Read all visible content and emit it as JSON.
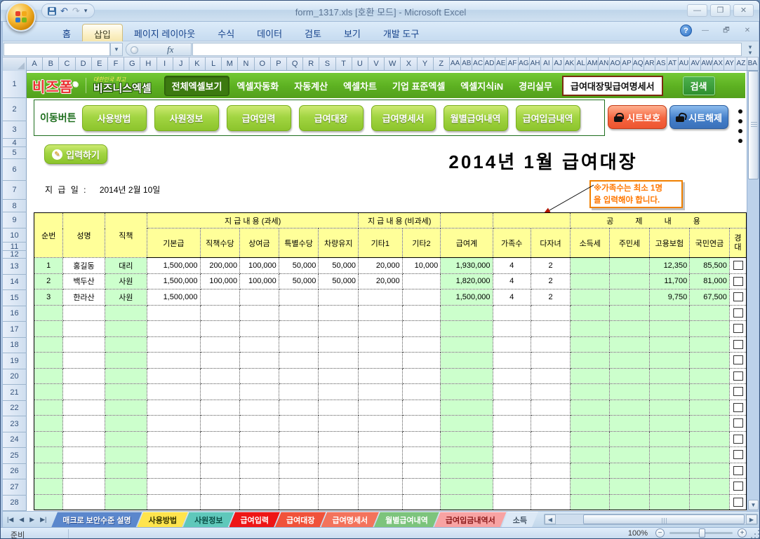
{
  "window": {
    "title": "form_1317.xls  [호환 모드] -  Microsoft Excel"
  },
  "ribbon": {
    "tabs": [
      "홈",
      "삽입",
      "페이지 레이아웃",
      "수식",
      "데이터",
      "검토",
      "보기",
      "개발 도구"
    ],
    "active_tab": "삽입",
    "fx_label": "fx"
  },
  "grid": {
    "columns": [
      "A",
      "B",
      "C",
      "D",
      "E",
      "F",
      "G",
      "H",
      "I",
      "J",
      "K",
      "L",
      "M",
      "N",
      "O",
      "P",
      "Q",
      "R",
      "S",
      "T",
      "U",
      "V",
      "W",
      "X",
      "Y",
      "Z",
      "AA",
      "AB",
      "AC",
      "AD",
      "AE",
      "AF",
      "AG",
      "AH",
      "AI",
      "AJ",
      "AK",
      "AL",
      "AM",
      "AN",
      "AO",
      "AP",
      "AQ",
      "AR",
      "AS",
      "AT",
      "AU",
      "AV",
      "AW",
      "AX",
      "AY",
      "AZ",
      "BA"
    ],
    "row_numbers": [
      1,
      2,
      3,
      4,
      5,
      6,
      7,
      8,
      9,
      10,
      11,
      12,
      13,
      14,
      15,
      16,
      17,
      18,
      19,
      20,
      21,
      22,
      23,
      24,
      25,
      26,
      27,
      28
    ]
  },
  "brandbar": {
    "logo_primary": "비즈폼",
    "logo_reg": "®",
    "logo_tagline": "대한민국 최고",
    "logo_secondary": "비즈니스엑셀",
    "featured": "전체엑셀보기",
    "menu": [
      "엑셀자동화",
      "자동계산",
      "엑셀차트",
      "기업 표준엑셀",
      "엑셀지식iN",
      "경리실무"
    ],
    "highlight": "급여대장및급여명세서",
    "search": "검색"
  },
  "navbar": {
    "label": "이동버튼",
    "buttons": [
      "사용방법",
      "사원정보",
      "급여입력",
      "급여대장",
      "급여명세서",
      "월별급여내역",
      "급여입금내역"
    ],
    "protect": "시트보호",
    "unprotect": "시트해제"
  },
  "sheet": {
    "input_button": "입력하기",
    "title": "2014년 1월 급여대장",
    "pay_date_label": "지 급 일 :",
    "pay_date_value": "2014년 2월 10일",
    "callout_line1": "※가족수는 최소 1명",
    "callout_line2": "을 입력해야 합니다.",
    "table": {
      "group_taxable": "지 급 내 용 (과세)",
      "group_nontaxable": "지 급 내 용 (비과세)",
      "group_deduction": "공 제 내 용",
      "headers": [
        "순번",
        "성명",
        "직책",
        "기본급",
        "직책수당",
        "상여금",
        "특별수당",
        "차량유지",
        "기타1",
        "기타2",
        "급여계",
        "가족수",
        "다자녀",
        "소득세",
        "주민세",
        "고용보험",
        "국민연금"
      ],
      "partial_header_line1": "경",
      "partial_header_line2": "대",
      "rows": [
        [
          "1",
          "홍길동",
          "대리",
          "1,500,000",
          "200,000",
          "100,000",
          "50,000",
          "50,000",
          "20,000",
          "10,000",
          "1,930,000",
          "4",
          "2",
          "",
          "",
          "12,350",
          "85,500"
        ],
        [
          "2",
          "백두산",
          "사원",
          "1,500,000",
          "100,000",
          "100,000",
          "50,000",
          "50,000",
          "20,000",
          "",
          "1,820,000",
          "4",
          "2",
          "",
          "",
          "11,700",
          "81,000"
        ],
        [
          "3",
          "한라산",
          "사원",
          "1,500,000",
          "",
          "",
          "",
          "",
          "",
          "",
          "1,500,000",
          "4",
          "2",
          "",
          "",
          "9,750",
          "67,500"
        ]
      ],
      "empty_row_count": 13
    }
  },
  "sheet_tabs": {
    "tabs": [
      {
        "label": "매크로 보안수준 설명",
        "bg": "#5b87cc",
        "fg": "#ffffff"
      },
      {
        "label": "사용방법",
        "bg": "#ffe44d",
        "fg": "#333300"
      },
      {
        "label": "사원정보",
        "bg": "#5fc8bb",
        "fg": "#084c44"
      },
      {
        "label": "급여입력",
        "bg": "#ee1616",
        "fg": "#ffffff"
      },
      {
        "label": "급여대장",
        "bg": "#f0523a",
        "fg": "#ffffff"
      },
      {
        "label": "급여명세서",
        "bg": "#f3735c",
        "fg": "#ffffff"
      },
      {
        "label": "월별급여내역",
        "bg": "#7cc47c",
        "fg": "#ffffff"
      },
      {
        "label": "급여입금내역서",
        "bg": "#f8a3a3",
        "fg": "#8b1a1a"
      },
      {
        "label": "소득",
        "bg": "#dce9f6",
        "fg": "#445566"
      }
    ]
  },
  "status": {
    "ready": "준비",
    "zoom_level": "100%"
  }
}
